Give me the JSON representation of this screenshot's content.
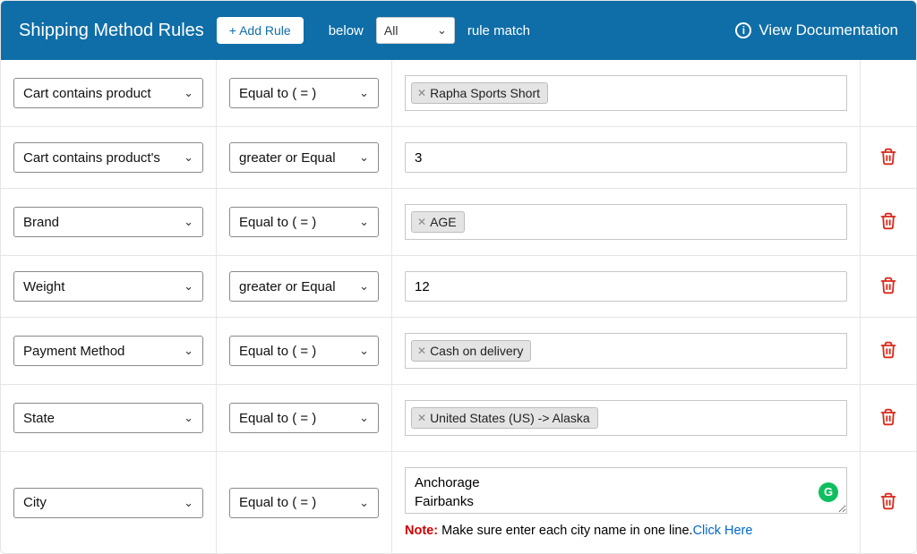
{
  "colors": {
    "header_bg": "#0f6ea8",
    "header_text": "#ffffff",
    "button_text": "#0f6ea8",
    "border": "#e5e5e5",
    "input_border": "#c7c7c7",
    "select_border": "#8a8a8a",
    "tag_bg": "#e4e4e4",
    "tag_border": "#bdbdbd",
    "trash": "#d92a1c",
    "note_red": "#d10000",
    "link": "#0067cc",
    "green_badge": "#0fbf5f"
  },
  "header": {
    "title": "Shipping Method Rules",
    "add_rule_label": "+ Add Rule",
    "below_label": "below",
    "match_select_value": "All",
    "rule_match_label": "rule match",
    "view_doc_label": "View Documentation"
  },
  "rows": [
    {
      "field": "Cart contains product",
      "operator": "Equal to ( = )",
      "value_type": "tags",
      "tags": [
        "Rapha Sports Short"
      ],
      "deletable": false
    },
    {
      "field": "Cart contains product's",
      "operator": "greater or Equal to ( >= )",
      "value_type": "text",
      "text_value": "3",
      "deletable": true
    },
    {
      "field": "Brand",
      "operator": "Equal to ( = )",
      "value_type": "tags",
      "tags": [
        "AGE"
      ],
      "deletable": true
    },
    {
      "field": "Weight",
      "operator": "greater or Equal to ( >= )",
      "value_type": "text",
      "text_value": "12",
      "deletable": true
    },
    {
      "field": "Payment Method",
      "operator": "Equal to ( = )",
      "value_type": "tags",
      "tags": [
        "Cash on delivery"
      ],
      "deletable": true
    },
    {
      "field": "State",
      "operator": "Equal to ( = )",
      "value_type": "tags",
      "tags": [
        "United States (US) -> Alaska"
      ],
      "deletable": true
    },
    {
      "field": "City",
      "operator": "Equal to ( = )",
      "value_type": "textarea",
      "textarea_value": "Anchorage\nFairbanks",
      "note_prefix": "Note:",
      "note_text": " Make sure enter each city name in one line.",
      "note_link": "Click Here",
      "deletable": true
    }
  ]
}
